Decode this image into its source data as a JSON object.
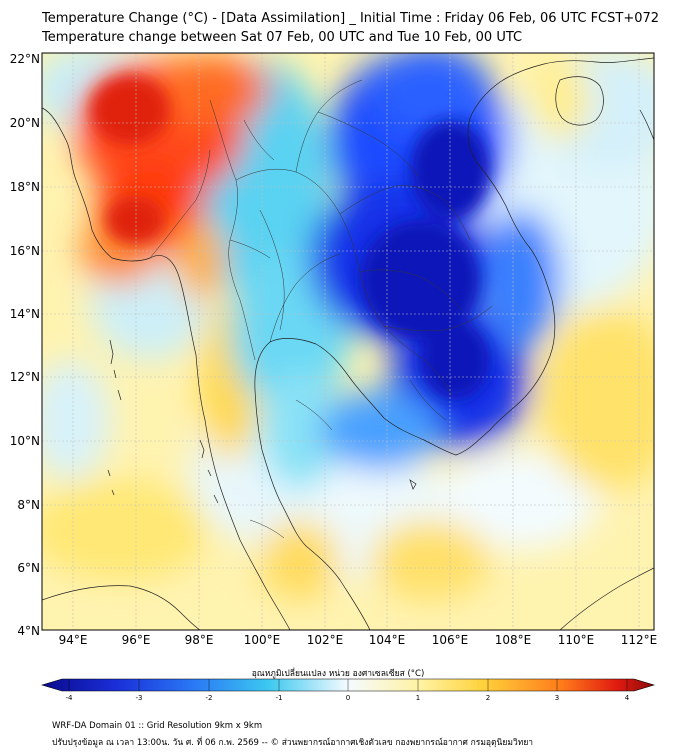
{
  "title_line1": "Temperature Change (°C) - [Data Assimilation] _ Initial Time : Friday 06 Feb, 06 UTC FCST+072",
  "title_line2": "Temperature change between Sat 07 Feb, 00 UTC and Tue 10 Feb, 00 UTC",
  "lat_labels": [
    "22°N",
    "20°N",
    "18°N",
    "16°N",
    "14°N",
    "12°N",
    "10°N",
    "8°N",
    "6°N",
    "4°N"
  ],
  "lon_labels": [
    "94°E",
    "96°E",
    "98°E",
    "100°E",
    "102°E",
    "104°E",
    "106°E",
    "108°E",
    "110°E",
    "112°E"
  ],
  "colorbar": {
    "label": "อุณหภูมิเปลี่ยนแปลง หน่วย องศาเซลเซียส (°C)",
    "ticks": [
      "-4",
      "-3",
      "-2",
      "-1",
      "0",
      "1",
      "2",
      "3",
      "4"
    ],
    "colors": {
      "cold_extreme": "#0a0a8c",
      "cold": "#1e3cff",
      "cool": "#3cc8f0",
      "neutral": "#f5fbff",
      "warm": "#ffee70",
      "hot": "#ff7a1a",
      "hot_extreme": "#8c0a0a"
    }
  },
  "footer_line1": "WRF-DA Domain 01 :: Grid Resolution 9km x 9km",
  "footer_line2": "ปรับปรุงข้อมูล ณ เวลา 13:00น. วัน ศ. ที่ 06 ก.พ. 2569 -- © ส่วนพยากรณ์อากาศเชิงตัวเลข กองพยากรณ์อากาศ กรมอุตุนิยมวิทยา"
}
